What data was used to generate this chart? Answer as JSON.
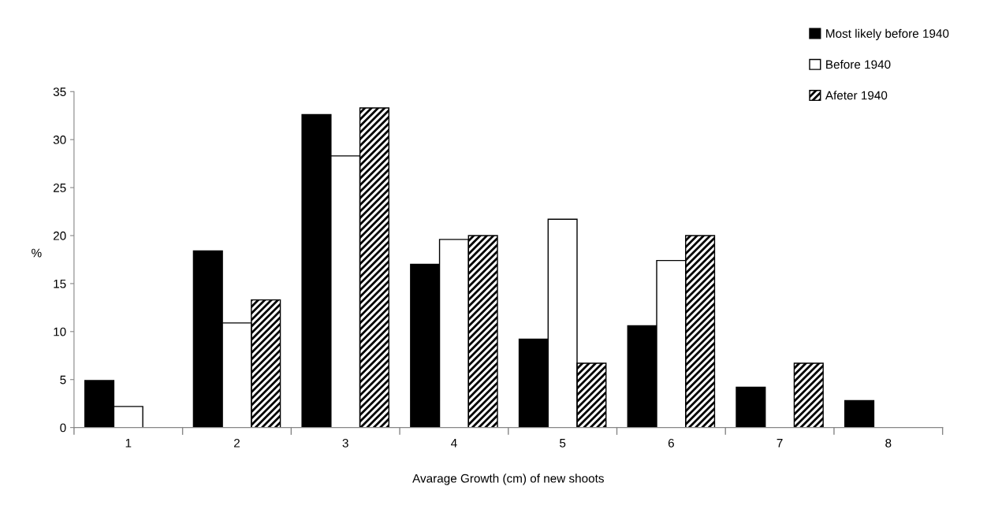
{
  "chart_data": {
    "type": "bar",
    "xlabel": "Avarage Growth (cm) of new shoots",
    "ylabel": "%",
    "categories": [
      "1",
      "2",
      "3",
      "4",
      "5",
      "6",
      "7",
      "8"
    ],
    "series": [
      {
        "name": "Most likely before 1940",
        "color": "#000000",
        "values": [
          4.9,
          18.4,
          32.6,
          17.0,
          9.2,
          10.6,
          4.2,
          2.8
        ]
      },
      {
        "name": "Before 1940",
        "color": "#ffffff",
        "values": [
          2.2,
          10.9,
          28.3,
          19.6,
          21.7,
          17.4,
          null,
          null
        ]
      },
      {
        "name": "Afeter 1940",
        "color": "#000000",
        "values": [
          null,
          13.3,
          33.3,
          20.0,
          6.7,
          20.0,
          6.7,
          null
        ]
      }
    ],
    "ylim": [
      0,
      35
    ],
    "yticks": [
      0,
      5,
      10,
      15,
      20,
      25,
      30,
      35
    ],
    "grid": false,
    "legend": "top right"
  }
}
